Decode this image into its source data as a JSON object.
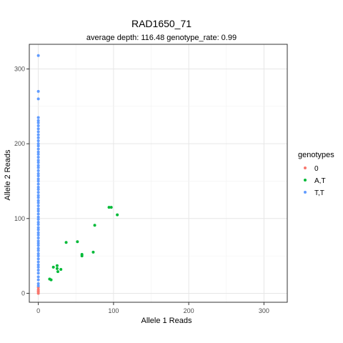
{
  "chart_data": {
    "type": "scatter",
    "title": "RAD1650_71",
    "subtitle": "average depth:  116.48  genotype_rate:  0.99",
    "xlabel": "Allele 1 Reads",
    "ylabel": "Allele 2 Reads",
    "xlim": [
      -12,
      331
    ],
    "ylim": [
      -12,
      333
    ],
    "x_ticks": [
      0,
      100,
      200,
      300
    ],
    "x_tick_labels": [
      "0",
      "100",
      "200",
      "300"
    ],
    "y_ticks": [
      0,
      100,
      200,
      300
    ],
    "y_tick_labels": [
      "0",
      "100",
      "200",
      "300"
    ],
    "grid": true,
    "legend": {
      "title": "genotypes",
      "position": "right"
    },
    "series": [
      {
        "name": "0",
        "color": "#F8766D",
        "points": [
          [
            0,
            0
          ],
          [
            0,
            2
          ],
          [
            0,
            3
          ],
          [
            0,
            5
          ],
          [
            0,
            8
          ]
        ]
      },
      {
        "name": "A,T",
        "color": "#00BA38",
        "points": [
          [
            15,
            19
          ],
          [
            17,
            18
          ],
          [
            20,
            35
          ],
          [
            25,
            37
          ],
          [
            25,
            33
          ],
          [
            26,
            29
          ],
          [
            30,
            32
          ],
          [
            37,
            68
          ],
          [
            52,
            69
          ],
          [
            58,
            52
          ],
          [
            58,
            50
          ],
          [
            73,
            55
          ],
          [
            75,
            91
          ],
          [
            94,
            115
          ],
          [
            97,
            115
          ],
          [
            105,
            105
          ]
        ]
      },
      {
        "name": "T,T",
        "color": "#619CFF",
        "points": [
          [
            0,
            10
          ],
          [
            0,
            13
          ],
          [
            0,
            18
          ],
          [
            0,
            22
          ],
          [
            0,
            27
          ],
          [
            0,
            31
          ],
          [
            0,
            35
          ],
          [
            0,
            38
          ],
          [
            0,
            42
          ],
          [
            0,
            46
          ],
          [
            0,
            50
          ],
          [
            0,
            53
          ],
          [
            0,
            57
          ],
          [
            0,
            60
          ],
          [
            0,
            64
          ],
          [
            0,
            67
          ],
          [
            0,
            70
          ],
          [
            0,
            74
          ],
          [
            0,
            78
          ],
          [
            0,
            81
          ],
          [
            0,
            85
          ],
          [
            0,
            88
          ],
          [
            0,
            92
          ],
          [
            0,
            95
          ],
          [
            0,
            99
          ],
          [
            0,
            102
          ],
          [
            0,
            106
          ],
          [
            0,
            110
          ],
          [
            0,
            113
          ],
          [
            0,
            117
          ],
          [
            0,
            121
          ],
          [
            0,
            124
          ],
          [
            0,
            128
          ],
          [
            0,
            131
          ],
          [
            0,
            135
          ],
          [
            0,
            139
          ],
          [
            0,
            142
          ],
          [
            0,
            146
          ],
          [
            0,
            150
          ],
          [
            0,
            153
          ],
          [
            0,
            157
          ],
          [
            0,
            160
          ],
          [
            0,
            164
          ],
          [
            0,
            168
          ],
          [
            0,
            171
          ],
          [
            0,
            175
          ],
          [
            0,
            178
          ],
          [
            0,
            182
          ],
          [
            0,
            186
          ],
          [
            0,
            189
          ],
          [
            0,
            193
          ],
          [
            0,
            197
          ],
          [
            0,
            200
          ],
          [
            0,
            204
          ],
          [
            0,
            208
          ],
          [
            0,
            212
          ],
          [
            0,
            216
          ],
          [
            0,
            220
          ],
          [
            0,
            224
          ],
          [
            0,
            228
          ],
          [
            0,
            231
          ],
          [
            0,
            235
          ],
          [
            0,
            260
          ],
          [
            0,
            270
          ],
          [
            0,
            318
          ]
        ]
      }
    ]
  }
}
